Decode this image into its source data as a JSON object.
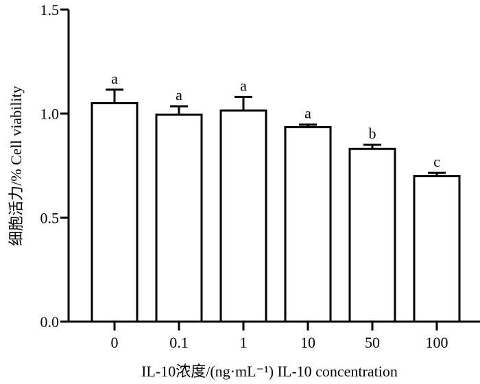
{
  "chart_data": {
    "type": "bar",
    "categories": [
      "0",
      "0.1",
      "1",
      "10",
      "50",
      "100"
    ],
    "values": [
      1.05,
      0.995,
      1.015,
      0.935,
      0.83,
      0.7
    ],
    "errors": [
      0.065,
      0.04,
      0.065,
      0.012,
      0.02,
      0.015
    ],
    "significance": [
      "a",
      "a",
      "a",
      "a",
      "b",
      "c"
    ],
    "ylabel": "细胞活力/%  Cell viability",
    "xlabel": "IL-10浓度/(ng·mL⁻¹)  IL-10 concentration",
    "ylim": [
      0,
      1.5
    ],
    "yticks": [
      "0.0",
      "0.5",
      "1.0",
      "1.5"
    ],
    "ytick_values": [
      0,
      0.5,
      1.0,
      1.5
    ],
    "colors": {
      "bar_fill": "#ffffff",
      "bar_edge": "#000000"
    }
  }
}
